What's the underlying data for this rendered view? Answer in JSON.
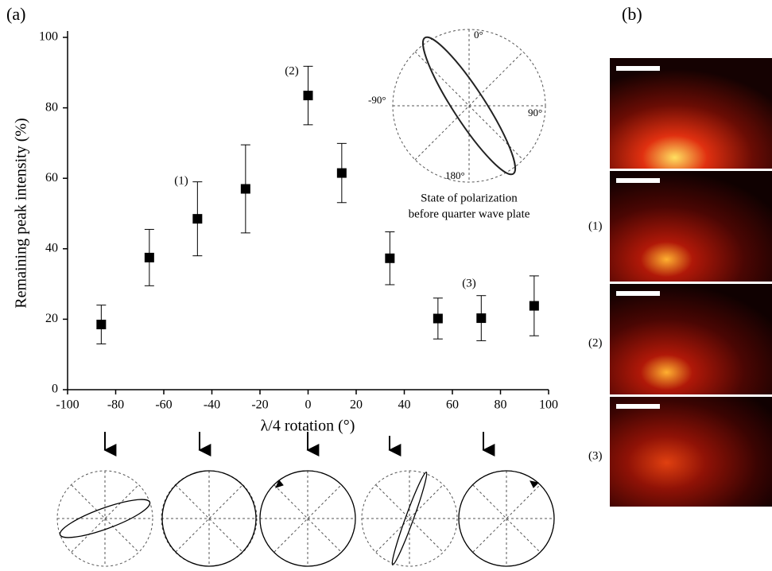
{
  "panel_labels": [
    "(a)",
    "(b)"
  ],
  "chart_data": {
    "type": "scatter",
    "xlabel": "λ/4 rotation (°)",
    "ylabel": "Remaining peak intensity (%)",
    "x": [
      -86,
      -66,
      -46,
      -26,
      0,
      14,
      34,
      54,
      72,
      94
    ],
    "values": [
      18.5,
      37.5,
      48.5,
      57,
      83.5,
      61.5,
      37.3,
      20.2,
      20.3,
      23.8
    ],
    "errors": [
      5.5,
      8,
      10.5,
      12.5,
      8.3,
      8.4,
      7.5,
      5.8,
      6.4,
      8.5
    ],
    "color": "#000000",
    "xlim": [
      -100,
      100
    ],
    "ylim": [
      0,
      100
    ],
    "xticks": [
      -100,
      -80,
      -60,
      -40,
      -20,
      0,
      20,
      40,
      60,
      80,
      100
    ],
    "yticks": [
      0,
      20,
      40,
      60,
      80,
      100
    ],
    "annotations": [
      "(1)",
      "(2)",
      "(3)"
    ]
  },
  "inset": {
    "angles": [
      "0°",
      "90°",
      "-90°",
      "180°"
    ],
    "caption": [
      "State of polarization",
      "before quarter wave plate"
    ]
  },
  "images": {
    "labels": [
      "(1)",
      "(2)",
      "(3)"
    ]
  }
}
